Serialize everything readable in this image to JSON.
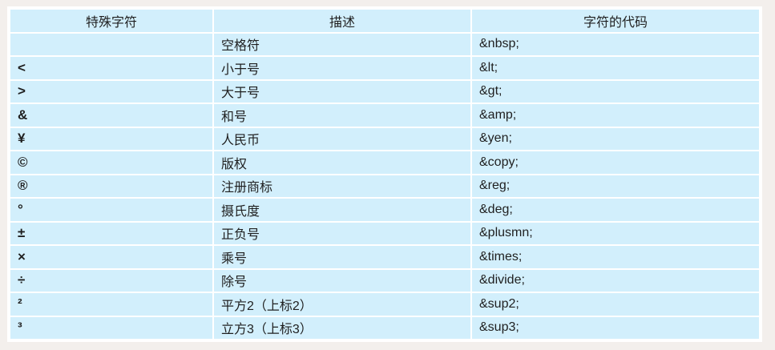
{
  "page": {
    "background_color": "#f3efec"
  },
  "table": {
    "cell_background_color": "#d2effc",
    "grid_color": "#ffffff",
    "text_color": "#1f1f1f",
    "headers": {
      "special_char": "特殊字符",
      "description": "描述",
      "code": "字符的代码"
    },
    "rows": [
      {
        "char": "",
        "description": "空格符",
        "code": "&nbsp;"
      },
      {
        "char": "<",
        "description": "小于号",
        "code": "&lt;"
      },
      {
        "char": ">",
        "description": "大于号",
        "code": "&gt;"
      },
      {
        "char": "&",
        "description": "和号",
        "code": "&amp;"
      },
      {
        "char": "¥",
        "description": "人民币",
        "code": "&yen;"
      },
      {
        "char": "©",
        "description": "版权",
        "code": "&copy;"
      },
      {
        "char": "®",
        "description": "注册商标",
        "code": "&reg;"
      },
      {
        "char": "°",
        "description": "摄氏度",
        "code": "&deg;"
      },
      {
        "char": "±",
        "description": "正负号",
        "code": "&plusmn;"
      },
      {
        "char": "×",
        "description": "乘号",
        "code": "&times;"
      },
      {
        "char": "÷",
        "description": "除号",
        "code": "&divide;"
      },
      {
        "char": "²",
        "description": "平方2（上标2）",
        "code": "&sup2;"
      },
      {
        "char": "³",
        "description": "立方3（上标3）",
        "code": "&sup3;"
      }
    ]
  }
}
